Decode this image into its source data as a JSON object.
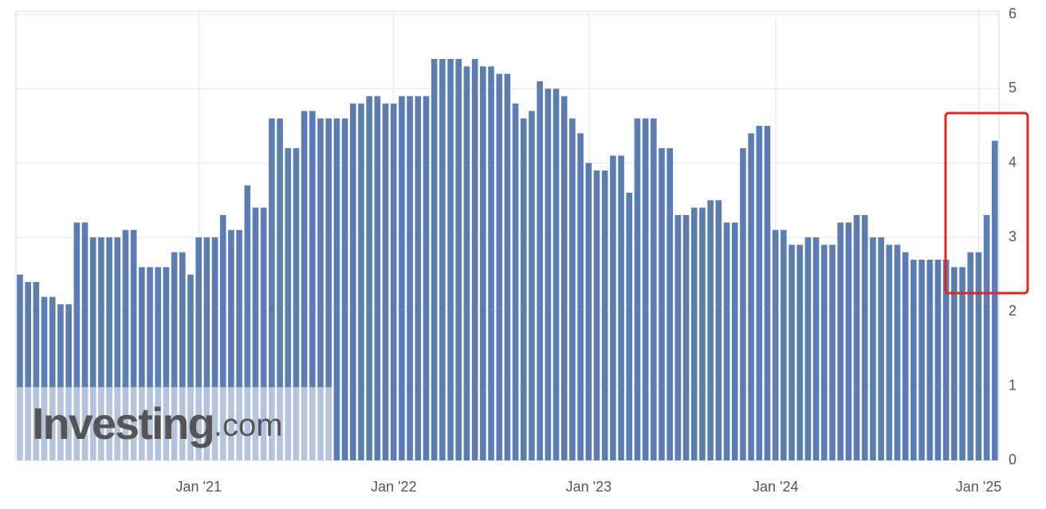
{
  "chart_data": {
    "type": "bar",
    "categories": [
      null,
      null,
      null,
      null,
      null,
      null,
      null,
      null,
      null,
      null,
      null,
      null,
      null,
      null,
      null,
      null,
      null,
      null,
      null,
      null,
      null,
      null,
      "Jan '21",
      null,
      null,
      null,
      null,
      null,
      null,
      null,
      null,
      null,
      null,
      null,
      null,
      null,
      null,
      null,
      null,
      null,
      null,
      null,
      null,
      null,
      null,
      null,
      "Jan '22",
      null,
      null,
      null,
      null,
      null,
      null,
      null,
      null,
      null,
      null,
      null,
      null,
      null,
      null,
      null,
      null,
      null,
      null,
      null,
      null,
      null,
      null,
      null,
      "Jan '23",
      null,
      null,
      null,
      null,
      null,
      null,
      null,
      null,
      null,
      null,
      null,
      null,
      null,
      null,
      null,
      null,
      null,
      null,
      null,
      null,
      null,
      null,
      "Jan '24",
      null,
      null,
      null,
      null,
      null,
      null,
      null,
      null,
      null,
      null,
      null,
      null,
      null,
      null,
      null,
      null,
      null,
      null,
      null,
      null,
      null,
      null,
      null,
      null,
      "Jan '25",
      null,
      null
    ],
    "values": [
      2.5,
      2.4,
      2.4,
      2.2,
      2.2,
      2.1,
      2.1,
      3.2,
      3.2,
      3.0,
      3.0,
      3.0,
      3.0,
      3.1,
      3.1,
      2.6,
      2.6,
      2.6,
      2.6,
      2.8,
      2.8,
      2.5,
      3.0,
      3.0,
      3.0,
      3.3,
      3.1,
      3.1,
      3.7,
      3.4,
      3.4,
      4.6,
      4.6,
      4.2,
      4.2,
      4.7,
      4.7,
      4.6,
      4.6,
      4.6,
      4.6,
      4.8,
      4.8,
      4.9,
      4.9,
      4.8,
      4.8,
      4.9,
      4.9,
      4.9,
      4.9,
      5.4,
      5.4,
      5.4,
      5.4,
      5.3,
      5.4,
      5.3,
      5.3,
      5.2,
      5.2,
      4.8,
      4.6,
      4.7,
      5.1,
      5.0,
      5.0,
      4.9,
      4.6,
      4.4,
      4.0,
      3.9,
      3.9,
      4.1,
      4.1,
      3.6,
      4.6,
      4.6,
      4.6,
      4.2,
      4.2,
      3.3,
      3.3,
      3.4,
      3.4,
      3.5,
      3.5,
      3.2,
      3.2,
      4.2,
      4.4,
      4.5,
      4.5,
      3.1,
      3.1,
      2.9,
      2.9,
      3.0,
      3.0,
      2.9,
      2.9,
      3.2,
      3.2,
      3.3,
      3.3,
      3.0,
      3.0,
      2.9,
      2.9,
      2.8,
      2.7,
      2.7,
      2.7,
      2.7,
      2.7,
      2.6,
      2.6,
      2.8,
      2.8,
      3.3,
      4.3
    ],
    "color": "#5b7db3",
    "ylim": [
      0,
      6
    ],
    "yticks": [
      0,
      1,
      2,
      3,
      4,
      5,
      6
    ],
    "grid": true,
    "watermark": {
      "brand": "Investing",
      "suffix": ".com"
    }
  }
}
